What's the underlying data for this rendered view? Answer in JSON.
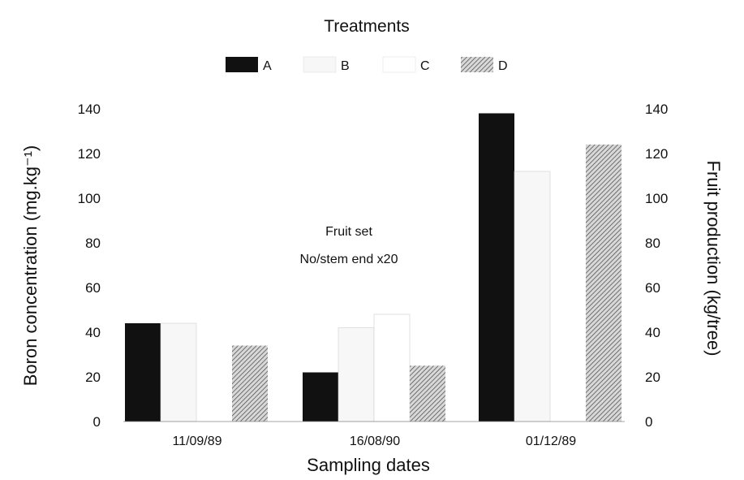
{
  "chart_data": {
    "type": "bar",
    "title": "Treatments",
    "xlabel": "Sampling dates",
    "ylabel_left": "Boron concentration (mg.kg⁻¹)",
    "ylabel_right": "Fruit production (kg/tree)",
    "categories": [
      "11/09/89",
      "16/08/90",
      "01/12/89"
    ],
    "series": [
      {
        "name": "A",
        "values": [
          44,
          22,
          138
        ]
      },
      {
        "name": "B",
        "values": [
          44,
          42,
          112
        ]
      },
      {
        "name": "C",
        "values": [
          0,
          48,
          0
        ]
      },
      {
        "name": "D",
        "values": [
          34,
          25,
          124
        ]
      }
    ],
    "ylim": [
      0,
      140
    ],
    "yticks": [
      0,
      20,
      40,
      60,
      80,
      100,
      120,
      140
    ],
    "legend_position": "top-center",
    "annotation": [
      "Fruit set",
      "No/stem end x20"
    ],
    "grid": false
  },
  "colors": {
    "A": "#111111",
    "B": "#f7f7f7",
    "C": "#ffffff",
    "D": "hatched-gray"
  }
}
